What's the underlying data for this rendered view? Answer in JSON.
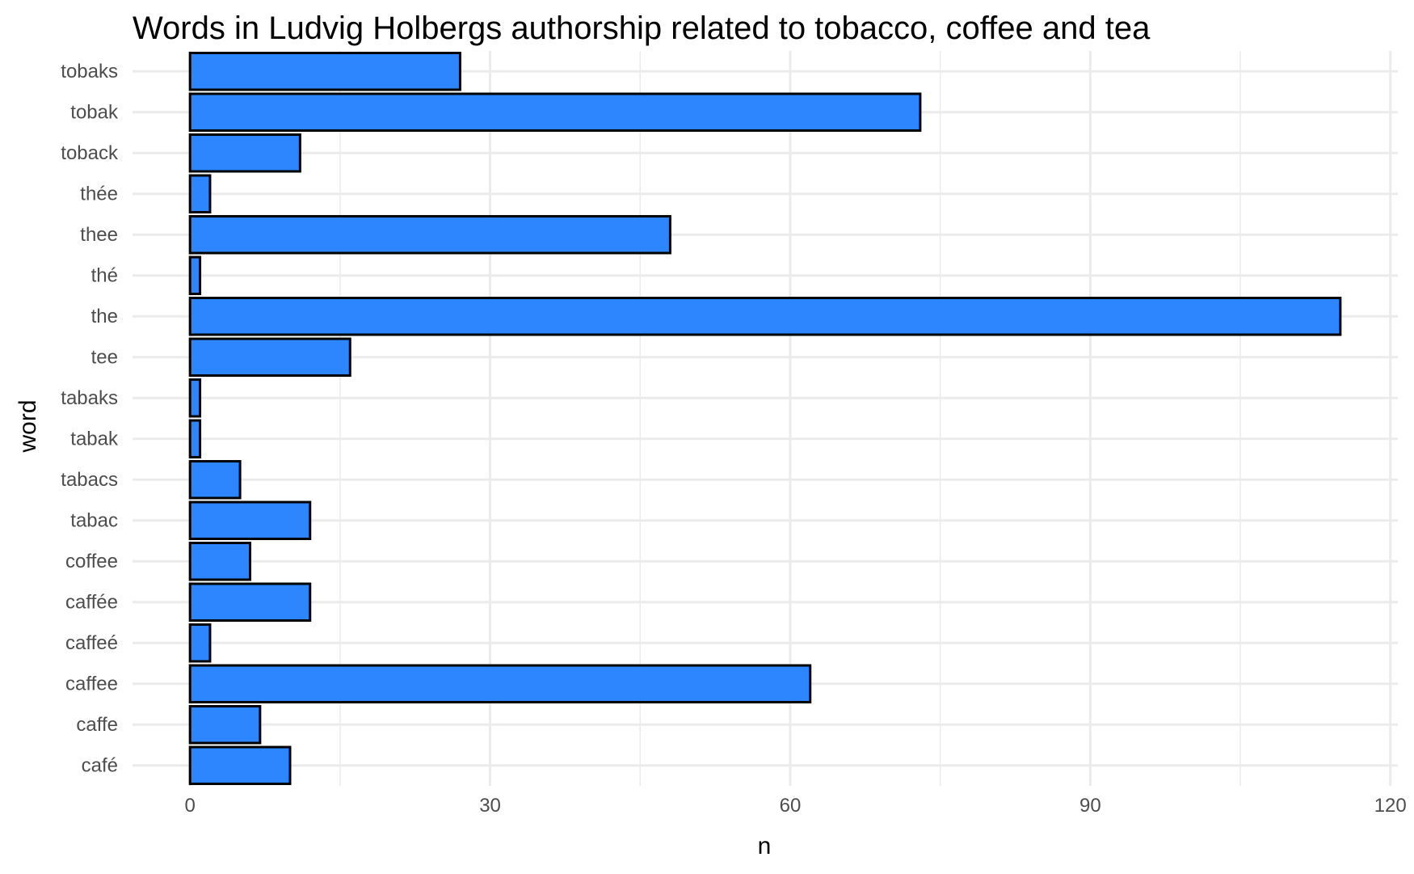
{
  "chart_data": {
    "type": "bar",
    "orientation": "horizontal",
    "title": "Words in Ludvig Holbergs authorship related to tobacco, coffee and tea",
    "xlabel": "n",
    "ylabel": "word",
    "categories": [
      "café",
      "caffe",
      "caffee",
      "caffeé",
      "cafféе",
      "coffee",
      "tabac",
      "tabacs",
      "tabak",
      "tabaks",
      "tee",
      "the",
      "thé",
      "thee",
      "thée",
      "toback",
      "tobak",
      "tobaks"
    ],
    "values": [
      10,
      7,
      62,
      2,
      12,
      6,
      12,
      5,
      1,
      1,
      16,
      115,
      1,
      48,
      2,
      11,
      73,
      27
    ],
    "xlim": [
      -5.75,
      120.75
    ],
    "xticks": [
      0,
      30,
      60,
      90,
      120
    ],
    "xtick_labels": [
      "0",
      "30",
      "60",
      "90",
      "120"
    ],
    "grid": true,
    "legend": "none",
    "bar_fill": "#2e86ff",
    "bar_outline": "#000000",
    "grid_color": "#ebebeb"
  }
}
